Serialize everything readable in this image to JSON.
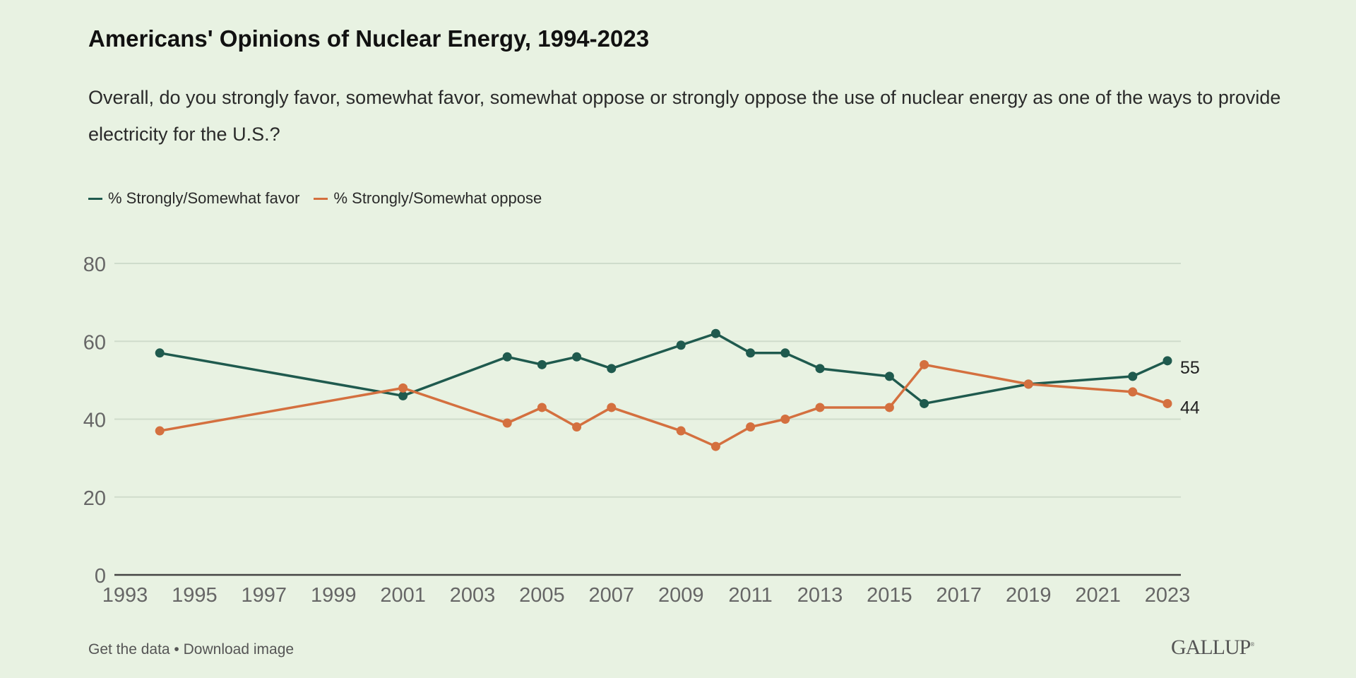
{
  "title": "Americans' Opinions of Nuclear Energy, 1994-2023",
  "subtitle": "Overall, do you strongly favor, somewhat favor, somewhat oppose or strongly oppose the use of nuclear energy as one of the ways to provide electricity for the U.S.?",
  "footer": {
    "get_data": "Get the data",
    "separator": " • ",
    "download": "Download image"
  },
  "logo": "GALLUP",
  "colors": {
    "favor": "#1f5a4e",
    "oppose": "#d4703f",
    "background": "#e8f2e2"
  },
  "chart_data": {
    "type": "line",
    "title": "Americans' Opinions of Nuclear Energy, 1994-2023",
    "xlabel": "",
    "ylabel": "",
    "xlim": [
      1993,
      2023
    ],
    "ylim": [
      0,
      80
    ],
    "x_ticks": [
      "1993",
      "1995",
      "1997",
      "1999",
      "2001",
      "2003",
      "2005",
      "2007",
      "2009",
      "2011",
      "2013",
      "2015",
      "2017",
      "2019",
      "2021",
      "2023"
    ],
    "y_ticks": [
      "0",
      "20",
      "40",
      "60",
      "80"
    ],
    "grid": true,
    "legend_placement": "top-left",
    "series": [
      {
        "name": "% Strongly/Somewhat favor",
        "color": "#1f5a4e",
        "x": [
          1994,
          2001,
          2004,
          2005,
          2006,
          2007,
          2009,
          2010,
          2011,
          2012,
          2013,
          2015,
          2016,
          2019,
          2022,
          2023
        ],
        "values": [
          57,
          46,
          56,
          54,
          56,
          53,
          59,
          62,
          57,
          57,
          53,
          51,
          44,
          49,
          51,
          55
        ],
        "end_label": "55"
      },
      {
        "name": "% Strongly/Somewhat oppose",
        "color": "#d4703f",
        "x": [
          1994,
          2001,
          2004,
          2005,
          2006,
          2007,
          2009,
          2010,
          2011,
          2012,
          2013,
          2015,
          2016,
          2019,
          2022,
          2023
        ],
        "values": [
          37,
          48,
          39,
          43,
          38,
          43,
          37,
          33,
          38,
          40,
          43,
          43,
          54,
          49,
          47,
          44
        ],
        "end_label": "44"
      }
    ]
  }
}
